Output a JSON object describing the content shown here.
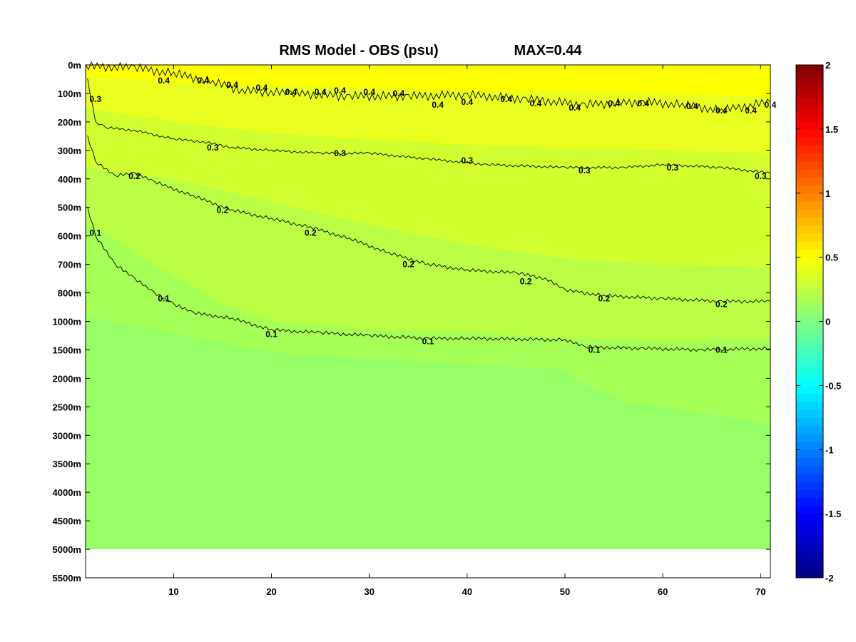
{
  "chart_data": {
    "type": "heatmap",
    "title": "RMS Model - OBS (psu)",
    "title_max": "MAX=0.44",
    "xlabel": "",
    "ylabel": "",
    "xlim": [
      1,
      71
    ],
    "x_ticks": [
      10,
      20,
      30,
      40,
      50,
      60,
      70
    ],
    "y_ticks": [
      "0m",
      "100m",
      "200m",
      "300m",
      "400m",
      "500m",
      "600m",
      "700m",
      "800m",
      "1000m",
      "1500m",
      "2000m",
      "2500m",
      "3000m",
      "3500m",
      "4000m",
      "4500m",
      "5000m",
      "5500m"
    ],
    "colorbar": {
      "colormap": "jet",
      "range": [
        -2,
        2
      ],
      "ticks": [
        "2",
        "1.5",
        "1",
        "0.5",
        "0",
        "-0.5",
        "-1",
        "-1.5",
        "-2"
      ]
    },
    "bottom_depth": "5000m",
    "fill_bands": [
      {
        "level": 0.45,
        "color": "#ffff00",
        "boundary": [
          [
            1,
            0.4
          ],
          [
            10,
            0.6
          ],
          [
            20,
            0.7
          ],
          [
            30,
            0.8
          ],
          [
            40,
            0.9
          ],
          [
            50,
            0.9
          ],
          [
            60,
            1.0
          ],
          [
            71,
            1.1
          ]
        ]
      },
      {
        "level": 0.35,
        "color": "#eaff1f",
        "boundary": [
          [
            1,
            1.5
          ],
          [
            10,
            2.0
          ],
          [
            20,
            2.4
          ],
          [
            30,
            2.6
          ],
          [
            40,
            2.8
          ],
          [
            50,
            2.9
          ],
          [
            60,
            3.0
          ],
          [
            71,
            3.1
          ]
        ]
      },
      {
        "level": 0.25,
        "color": "#d2ff30",
        "boundary": [
          [
            1,
            3.6
          ],
          [
            10,
            4.0
          ],
          [
            20,
            4.8
          ],
          [
            30,
            5.6
          ],
          [
            40,
            6.3
          ],
          [
            50,
            6.8
          ],
          [
            60,
            7.0
          ],
          [
            71,
            7.1
          ]
        ]
      },
      {
        "level": 0.15,
        "color": "#baff45",
        "boundary": [
          [
            1,
            5.5
          ],
          [
            8,
            7.0
          ],
          [
            15,
            8.4
          ],
          [
            20,
            9.0
          ],
          [
            30,
            9.3
          ],
          [
            40,
            9.4
          ],
          [
            50,
            9.6
          ],
          [
            60,
            9.7
          ],
          [
            71,
            9.6
          ]
        ]
      },
      {
        "level": 0.05,
        "color": "#a6ff57",
        "boundary": [
          [
            1,
            8.8
          ],
          [
            10,
            9.4
          ],
          [
            20,
            10.1
          ],
          [
            30,
            10.3
          ],
          [
            40,
            10.5
          ],
          [
            50,
            10.7
          ],
          [
            52,
            11.2
          ],
          [
            56,
            11.8
          ],
          [
            60,
            12.0
          ],
          [
            71,
            12.6
          ]
        ]
      },
      {
        "level": 0.0,
        "color": "#96ff66",
        "boundary": null
      }
    ],
    "contours": [
      {
        "level": 0.4,
        "line": [
          [
            1,
            0.05
          ],
          [
            6,
            0.1
          ],
          [
            10,
            0.3
          ],
          [
            14,
            0.6
          ],
          [
            17,
            0.9
          ],
          [
            22,
            1.0
          ],
          [
            28,
            1.1
          ],
          [
            34,
            1.1
          ],
          [
            40,
            1.05
          ],
          [
            46,
            1.2
          ],
          [
            52,
            1.4
          ],
          [
            58,
            1.3
          ],
          [
            62,
            1.4
          ],
          [
            66,
            1.6
          ],
          [
            71,
            1.3
          ]
        ],
        "labels": [
          [
            9,
            0.55
          ],
          [
            13,
            0.55
          ],
          [
            16,
            0.7
          ],
          [
            19,
            0.8
          ],
          [
            22,
            0.95
          ],
          [
            25,
            0.95
          ],
          [
            27,
            0.9
          ],
          [
            30,
            0.95
          ],
          [
            33,
            1.0
          ],
          [
            37,
            1.4
          ],
          [
            40,
            1.3
          ],
          [
            44,
            1.2
          ],
          [
            47,
            1.35
          ],
          [
            51,
            1.5
          ],
          [
            55,
            1.35
          ],
          [
            58,
            1.35
          ],
          [
            63,
            1.45
          ],
          [
            66,
            1.6
          ],
          [
            69,
            1.6
          ],
          [
            71,
            1.4
          ]
        ]
      },
      {
        "level": 0.3,
        "line": [
          [
            1.2,
            0.5
          ],
          [
            2,
            2.0
          ],
          [
            3,
            2.2
          ],
          [
            6,
            2.3
          ],
          [
            10,
            2.6
          ],
          [
            13,
            2.7
          ],
          [
            16,
            2.9
          ],
          [
            20,
            3.0
          ],
          [
            25,
            3.1
          ],
          [
            30,
            3.1
          ],
          [
            36,
            3.3
          ],
          [
            42,
            3.5
          ],
          [
            50,
            3.6
          ],
          [
            56,
            3.6
          ],
          [
            60,
            3.5
          ],
          [
            66,
            3.6
          ],
          [
            71,
            3.8
          ]
        ],
        "labels": [
          [
            2,
            1.2
          ],
          [
            14,
            2.9
          ],
          [
            27,
            3.1
          ],
          [
            40,
            3.35
          ],
          [
            52,
            3.7
          ],
          [
            61,
            3.6
          ],
          [
            70,
            3.9
          ]
        ]
      },
      {
        "level": 0.2,
        "line": [
          [
            1.2,
            2.5
          ],
          [
            2,
            3.4
          ],
          [
            4,
            3.9
          ],
          [
            6,
            3.8
          ],
          [
            8,
            4.1
          ],
          [
            12,
            4.6
          ],
          [
            16,
            5.1
          ],
          [
            20,
            5.4
          ],
          [
            24,
            5.7
          ],
          [
            28,
            6.1
          ],
          [
            32,
            6.6
          ],
          [
            36,
            7.0
          ],
          [
            40,
            7.2
          ],
          [
            45,
            7.3
          ],
          [
            48,
            7.5
          ],
          [
            50,
            7.9
          ],
          [
            54,
            8.1
          ],
          [
            60,
            8.2
          ],
          [
            66,
            8.3
          ],
          [
            71,
            8.3
          ]
        ],
        "labels": [
          [
            6,
            3.9
          ],
          [
            15,
            5.1
          ],
          [
            24,
            5.9
          ],
          [
            34,
            7.0
          ],
          [
            46,
            7.6
          ],
          [
            54,
            8.2
          ],
          [
            66,
            8.4
          ]
        ]
      },
      {
        "level": 0.1,
        "line": [
          [
            1.2,
            5.0
          ],
          [
            2,
            6.0
          ],
          [
            4,
            7.0
          ],
          [
            6,
            7.5
          ],
          [
            8,
            8.0
          ],
          [
            10,
            8.4
          ],
          [
            12,
            8.7
          ],
          [
            16,
            8.9
          ],
          [
            20,
            9.3
          ],
          [
            25,
            9.4
          ],
          [
            30,
            9.5
          ],
          [
            36,
            9.6
          ],
          [
            40,
            9.6
          ],
          [
            50,
            9.65
          ],
          [
            52,
            9.9
          ],
          [
            58,
            9.95
          ],
          [
            64,
            10.0
          ],
          [
            71,
            9.95
          ]
        ],
        "labels": [
          [
            2,
            5.9
          ],
          [
            9,
            8.2
          ],
          [
            20,
            9.45
          ],
          [
            36,
            9.7
          ],
          [
            53,
            10.0
          ],
          [
            66,
            10.0
          ]
        ]
      }
    ]
  }
}
